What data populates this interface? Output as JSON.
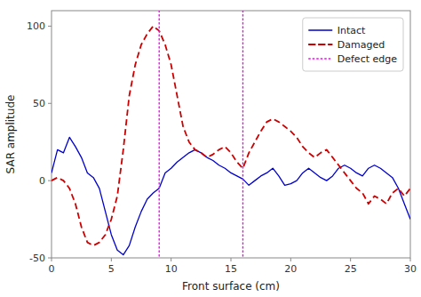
{
  "chart_data": {
    "type": "line",
    "xlabel": "Front surface (cm)",
    "ylabel": "SAR amplitude",
    "x": [
      0,
      0.5,
      1,
      1.5,
      2,
      2.5,
      3,
      3.5,
      4,
      4.5,
      5,
      5.5,
      6,
      6.5,
      7,
      7.5,
      8,
      8.5,
      9,
      9.5,
      10,
      10.5,
      11,
      11.5,
      12,
      12.5,
      13,
      13.5,
      14,
      14.5,
      15,
      15.5,
      16,
      16.5,
      17,
      17.5,
      18,
      18.5,
      19,
      19.5,
      20,
      20.5,
      21,
      21.5,
      22,
      22.5,
      23,
      23.5,
      24,
      24.5,
      25,
      25.5,
      26,
      26.5,
      27,
      27.5,
      28,
      28.5,
      29,
      29.5,
      30
    ],
    "series": [
      {
        "name": "Intact",
        "color": "#0000cc",
        "line_style": "solid",
        "values": [
          5,
          20,
          18,
          28,
          22,
          15,
          5,
          2,
          -5,
          -20,
          -35,
          -45,
          -48,
          -42,
          -30,
          -20,
          -12,
          -8,
          -5,
          5,
          8,
          12,
          15,
          18,
          20,
          18,
          15,
          13,
          10,
          8,
          5,
          3,
          1,
          -3,
          0,
          3,
          5,
          8,
          3,
          -3,
          -2,
          0,
          5,
          8,
          5,
          2,
          0,
          3,
          8,
          10,
          8,
          5,
          3,
          8,
          10,
          8,
          5,
          2,
          -5,
          -15,
          -25
        ]
      },
      {
        "name": "Damaged",
        "color": "#cc0000",
        "line_style": "dashed",
        "values": [
          0,
          2,
          0,
          -5,
          -15,
          -30,
          -40,
          -42,
          -40,
          -35,
          -25,
          -10,
          20,
          55,
          75,
          88,
          95,
          100,
          97,
          88,
          75,
          55,
          35,
          25,
          20,
          18,
          15,
          17,
          20,
          22,
          18,
          12,
          8,
          18,
          25,
          32,
          38,
          40,
          38,
          35,
          32,
          28,
          22,
          18,
          15,
          18,
          20,
          15,
          10,
          5,
          0,
          -5,
          -8,
          -15,
          -10,
          -12,
          -15,
          -8,
          -5,
          -10,
          -5
        ]
      }
    ],
    "vertical_lines": {
      "name": "Defect edge",
      "color": "#ff00ff",
      "line_style": "dotted",
      "values": [
        9,
        16
      ]
    },
    "xlim": [
      0,
      30
    ],
    "ylim": [
      -50,
      110
    ],
    "xticks": [
      0,
      5,
      10,
      15,
      20,
      25,
      30
    ],
    "yticks": [
      -50,
      0,
      50,
      100
    ],
    "grid": false,
    "legend": "upper right"
  }
}
